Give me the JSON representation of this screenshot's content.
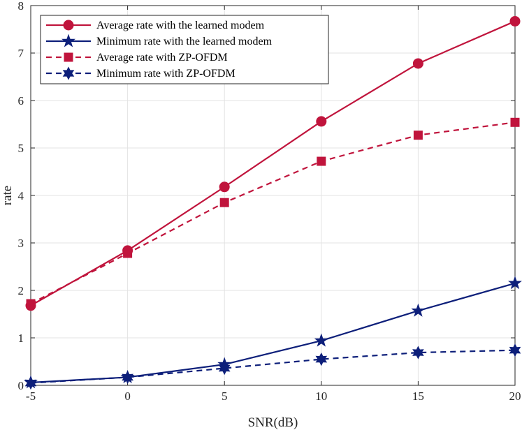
{
  "chart_data": {
    "type": "line",
    "xlabel": "SNR(dB)",
    "ylabel": "rate",
    "xlim": [
      -5,
      20
    ],
    "ylim": [
      0,
      8
    ],
    "xticks": [
      -5,
      0,
      5,
      10,
      15,
      20
    ],
    "yticks": [
      0,
      1,
      2,
      3,
      4,
      5,
      6,
      7,
      8
    ],
    "grid": true,
    "legend_position": "top-left",
    "x": [
      -5,
      0,
      5,
      10,
      15,
      20
    ],
    "series": [
      {
        "name": "Average rate with the learned modem",
        "values": [
          1.68,
          2.84,
          4.18,
          5.56,
          6.78,
          7.67
        ],
        "color": "#c0143c",
        "line_style": "solid",
        "marker": "circle"
      },
      {
        "name": "Minimum rate with the learned modem",
        "values": [
          0.06,
          0.17,
          0.44,
          0.94,
          1.57,
          2.15
        ],
        "color": "#0d1f7a",
        "line_style": "solid",
        "marker": "pentagram"
      },
      {
        "name": "Average rate with ZP-OFDM",
        "values": [
          1.72,
          2.78,
          3.85,
          4.72,
          5.27,
          5.54
        ],
        "color": "#c0143c",
        "line_style": "dashed",
        "marker": "square"
      },
      {
        "name": "Minimum rate with ZP-OFDM",
        "values": [
          0.05,
          0.17,
          0.36,
          0.55,
          0.69,
          0.74
        ],
        "color": "#0d1f7a",
        "line_style": "dashed",
        "marker": "hexagram"
      }
    ]
  }
}
